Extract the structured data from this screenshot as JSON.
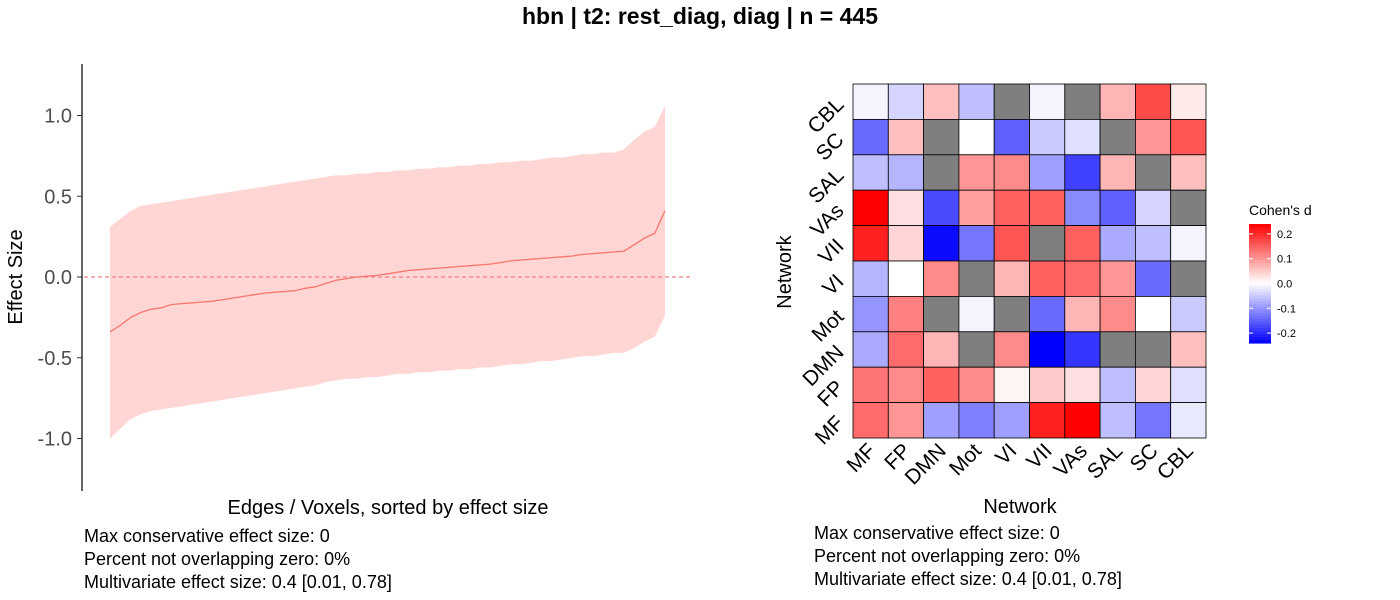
{
  "title": "hbn | t2: rest_diag, diag | n = 445",
  "colors": {
    "ribbon": "#ffd6d4",
    "line": "#f8766d",
    "grid_na": "#7f7f7f",
    "neg": "#0000ff",
    "pos": "#ff0000",
    "mid": "#ffffff"
  },
  "chart_data": [
    {
      "type": "line",
      "xlabel": "Edges / Voxels, sorted by effect size",
      "ylabel": "Effect Size",
      "ylim": [
        -1.3,
        1.3
      ],
      "yticks": [
        "-1.0",
        "-0.5",
        "0.0",
        "0.5",
        "1.0"
      ],
      "reference_line": 0.0,
      "x": [
        1,
        2,
        3,
        4,
        5,
        6,
        7,
        8,
        9,
        10,
        11,
        12,
        13,
        14,
        15,
        16,
        17,
        18,
        19,
        20,
        21,
        22,
        23,
        24,
        25,
        26,
        27,
        28,
        29,
        30,
        31,
        32,
        33,
        34,
        35,
        36,
        37,
        38,
        39,
        40,
        41,
        42,
        43,
        44,
        45,
        46,
        47,
        48,
        49,
        50,
        51,
        52,
        53,
        54,
        55
      ],
      "series": [
        {
          "name": "",
          "estimate": [
            -0.34,
            -0.3,
            -0.25,
            -0.22,
            -0.2,
            -0.19,
            -0.17,
            -0.165,
            -0.16,
            -0.155,
            -0.15,
            -0.14,
            -0.13,
            -0.12,
            -0.11,
            -0.1,
            -0.095,
            -0.09,
            -0.085,
            -0.07,
            -0.06,
            -0.04,
            -0.02,
            -0.01,
            0.0,
            0.005,
            0.01,
            0.02,
            0.03,
            0.04,
            0.045,
            0.05,
            0.055,
            0.06,
            0.065,
            0.07,
            0.075,
            0.08,
            0.09,
            0.1,
            0.105,
            0.11,
            0.115,
            0.12,
            0.125,
            0.13,
            0.14,
            0.145,
            0.15,
            0.155,
            0.16,
            0.2,
            0.24,
            0.27,
            0.41
          ],
          "lower": [
            -1.0,
            -0.94,
            -0.88,
            -0.85,
            -0.83,
            -0.82,
            -0.81,
            -0.8,
            -0.79,
            -0.78,
            -0.77,
            -0.76,
            -0.75,
            -0.74,
            -0.73,
            -0.72,
            -0.71,
            -0.7,
            -0.69,
            -0.68,
            -0.67,
            -0.65,
            -0.64,
            -0.63,
            -0.63,
            -0.62,
            -0.62,
            -0.61,
            -0.6,
            -0.6,
            -0.59,
            -0.59,
            -0.58,
            -0.58,
            -0.57,
            -0.57,
            -0.56,
            -0.56,
            -0.55,
            -0.54,
            -0.54,
            -0.53,
            -0.52,
            -0.52,
            -0.51,
            -0.5,
            -0.49,
            -0.49,
            -0.48,
            -0.47,
            -0.47,
            -0.44,
            -0.4,
            -0.37,
            -0.24
          ],
          "upper": [
            0.31,
            0.36,
            0.41,
            0.44,
            0.45,
            0.46,
            0.47,
            0.48,
            0.49,
            0.5,
            0.51,
            0.52,
            0.53,
            0.54,
            0.55,
            0.56,
            0.57,
            0.58,
            0.59,
            0.6,
            0.61,
            0.62,
            0.63,
            0.63,
            0.64,
            0.64,
            0.65,
            0.65,
            0.66,
            0.66,
            0.67,
            0.67,
            0.68,
            0.68,
            0.69,
            0.69,
            0.7,
            0.7,
            0.71,
            0.71,
            0.72,
            0.72,
            0.73,
            0.74,
            0.74,
            0.75,
            0.76,
            0.76,
            0.77,
            0.77,
            0.79,
            0.85,
            0.9,
            0.93,
            1.06
          ]
        }
      ],
      "stats": [
        "Max conservative effect size: 0",
        "Percent not overlapping zero: 0%",
        "Multivariate effect size: 0.4 [0.01, 0.78]"
      ]
    },
    {
      "type": "heatmap",
      "xlabel": "Network",
      "ylabel": "Network",
      "x_labels": [
        "MF",
        "FP",
        "DMN",
        "Mot",
        "VI",
        "VII",
        "VAs",
        "SAL",
        "SC",
        "CBL"
      ],
      "y_labels_top_to_bottom": [
        "CBL",
        "SC",
        "SAL",
        "VAs",
        "VII",
        "VI",
        "Mot",
        "DMN",
        "FP",
        "MF"
      ],
      "legend_title": "Cohen's d",
      "legend_ticks": [
        "0.2",
        "0.1",
        "0.0",
        "-0.1",
        "-0.2"
      ],
      "legend_range": [
        -0.24,
        0.24
      ],
      "values": [
        [
          -0.01,
          -0.04,
          0.06,
          -0.06,
          null,
          -0.01,
          null,
          0.07,
          0.17,
          0.02
        ],
        [
          -0.14,
          0.06,
          null,
          0.0,
          -0.15,
          -0.05,
          -0.03,
          null,
          0.1,
          0.16
        ],
        [
          -0.06,
          -0.07,
          null,
          0.1,
          0.11,
          -0.09,
          -0.18,
          0.07,
          null,
          0.06
        ],
        [
          0.24,
          0.03,
          -0.17,
          0.09,
          0.15,
          0.15,
          -0.11,
          -0.15,
          -0.04,
          null
        ],
        [
          0.21,
          0.04,
          -0.23,
          -0.13,
          0.16,
          null,
          0.15,
          -0.08,
          -0.06,
          -0.01
        ],
        [
          -0.07,
          0.0,
          0.11,
          null,
          0.07,
          0.15,
          0.14,
          0.1,
          -0.14,
          null
        ],
        [
          -0.1,
          0.12,
          null,
          -0.01,
          null,
          -0.14,
          0.07,
          0.11,
          0.0,
          -0.05
        ],
        [
          -0.08,
          0.14,
          0.07,
          null,
          0.11,
          -0.24,
          -0.19,
          null,
          null,
          0.06
        ],
        [
          0.13,
          0.11,
          0.15,
          0.11,
          0.01,
          0.05,
          0.03,
          -0.06,
          0.04,
          -0.03
        ],
        [
          0.14,
          0.1,
          -0.09,
          -0.12,
          -0.09,
          0.21,
          0.24,
          -0.06,
          -0.13,
          -0.02
        ]
      ],
      "stats": [
        "Max conservative effect size: 0",
        "Percent not overlapping zero: 0%",
        "Multivariate effect size: 0.4 [0.01, 0.78]"
      ]
    }
  ]
}
